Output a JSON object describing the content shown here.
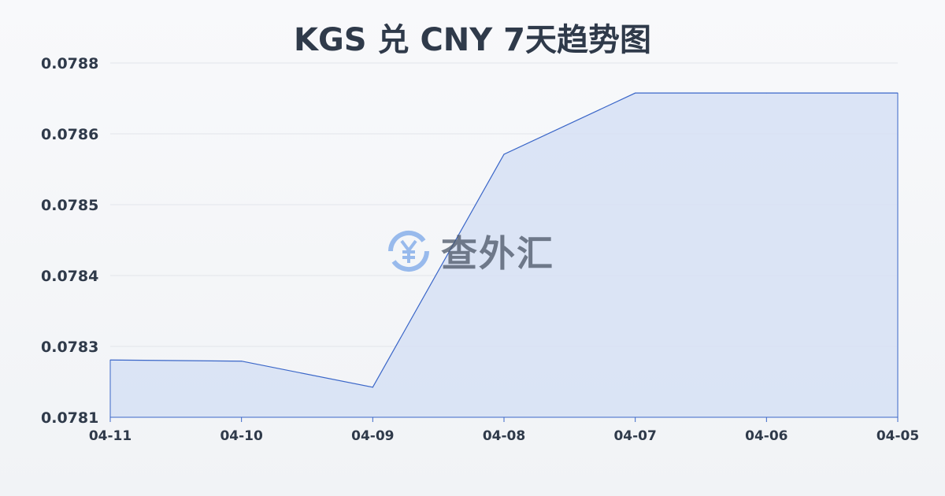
{
  "chart_data": {
    "type": "area",
    "title": "KGS 兑 CNY 7天趋势图",
    "categories": [
      "04-11",
      "04-10",
      "04-09",
      "04-08",
      "04-07",
      "04-06",
      "04-05"
    ],
    "series": [
      {
        "values": [
          0.078241,
          0.078239,
          0.078193,
          0.078604,
          0.078712,
          0.078712,
          0.078712
        ]
      }
    ],
    "yticks": [
      "0.0781",
      "0.0783",
      "0.0784",
      "0.0785",
      "0.0786",
      "0.0788"
    ],
    "ylim": [
      0.07814,
      0.078765
    ],
    "grid": true,
    "line_color": "#3a66c8",
    "fill_color": "#d6e0f5"
  },
  "watermark": {
    "text": "查外汇",
    "icon": "yen-exchange-icon"
  }
}
